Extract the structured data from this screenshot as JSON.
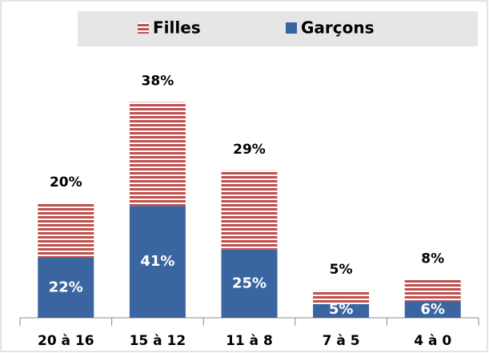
{
  "chart_data": {
    "type": "bar",
    "stacked": true,
    "categories": [
      "20 à 16",
      "15 à 12",
      "11 à 8",
      "7 à 5",
      "4 à 0"
    ],
    "series": [
      {
        "name": "Garçons",
        "color": "#3a65a0",
        "values": [
          22,
          41,
          25,
          5,
          6
        ],
        "value_labels": [
          "22%",
          "41%",
          "25%",
          "5%",
          "6%"
        ]
      },
      {
        "name": "Filles",
        "color": "#c0504d",
        "pattern": "horizontal-stripes",
        "values": [
          20,
          38,
          29,
          5,
          8
        ],
        "value_labels": [
          "20%",
          "38%",
          "29%",
          "5%",
          "8%"
        ]
      }
    ],
    "legend": "top"
  }
}
